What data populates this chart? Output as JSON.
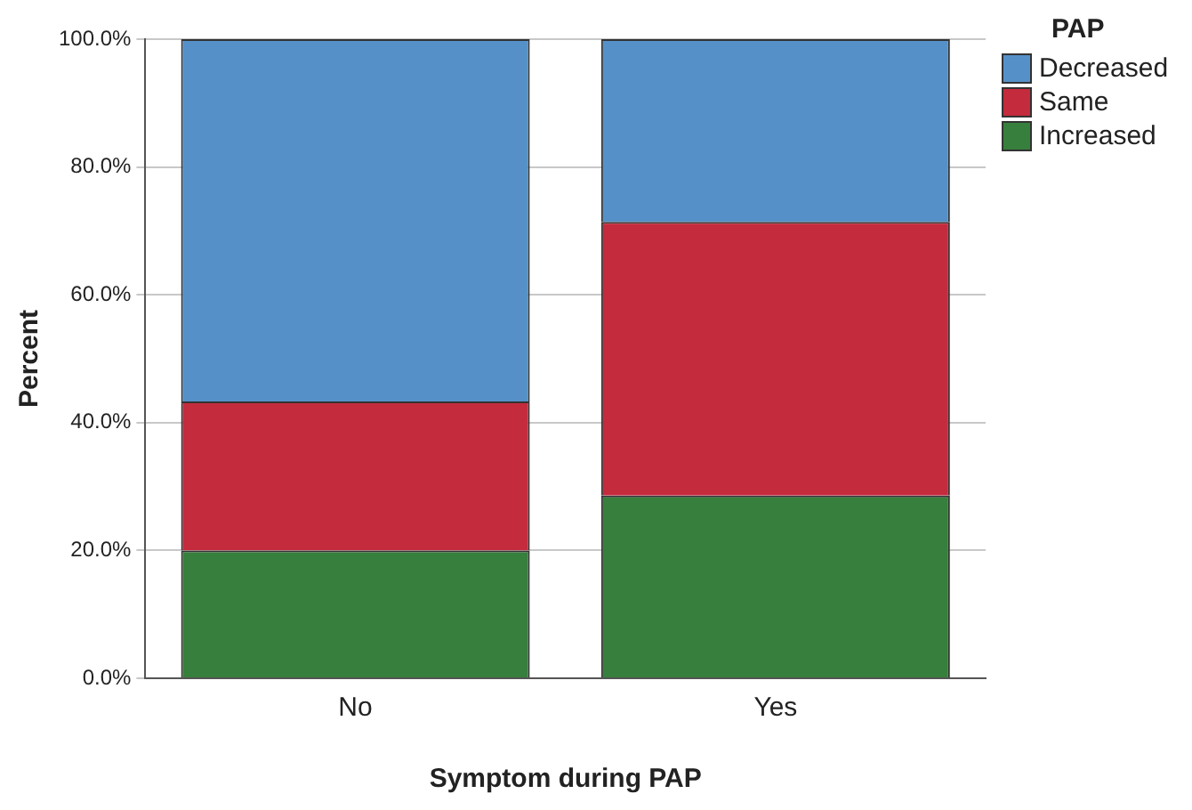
{
  "chart_data": {
    "type": "bar",
    "stacked": true,
    "xlabel": "Symptom during PAP",
    "ylabel": "Percent",
    "legend_title": "PAP",
    "legend": "top right",
    "grid": "y",
    "categories": [
      "No",
      "Yes"
    ],
    "series": [
      {
        "name": "Increased",
        "color": "#377f3c",
        "values": [
          20,
          28.6
        ]
      },
      {
        "name": "Same",
        "color": "#c42b3d",
        "values": [
          23.3,
          42.8
        ]
      },
      {
        "name": "Decreased",
        "color": "#5591c8",
        "values": [
          56.7,
          28.6
        ]
      }
    ],
    "ylim": [
      0,
      100
    ],
    "yticks": [
      {
        "value": 0,
        "label": "0.0%"
      },
      {
        "value": 20,
        "label": "20.0%"
      },
      {
        "value": 40,
        "label": "40.0%"
      },
      {
        "value": 60,
        "label": "60.0%"
      },
      {
        "value": 80,
        "label": "80.0%"
      },
      {
        "value": 100,
        "label": "100.0%"
      }
    ]
  }
}
